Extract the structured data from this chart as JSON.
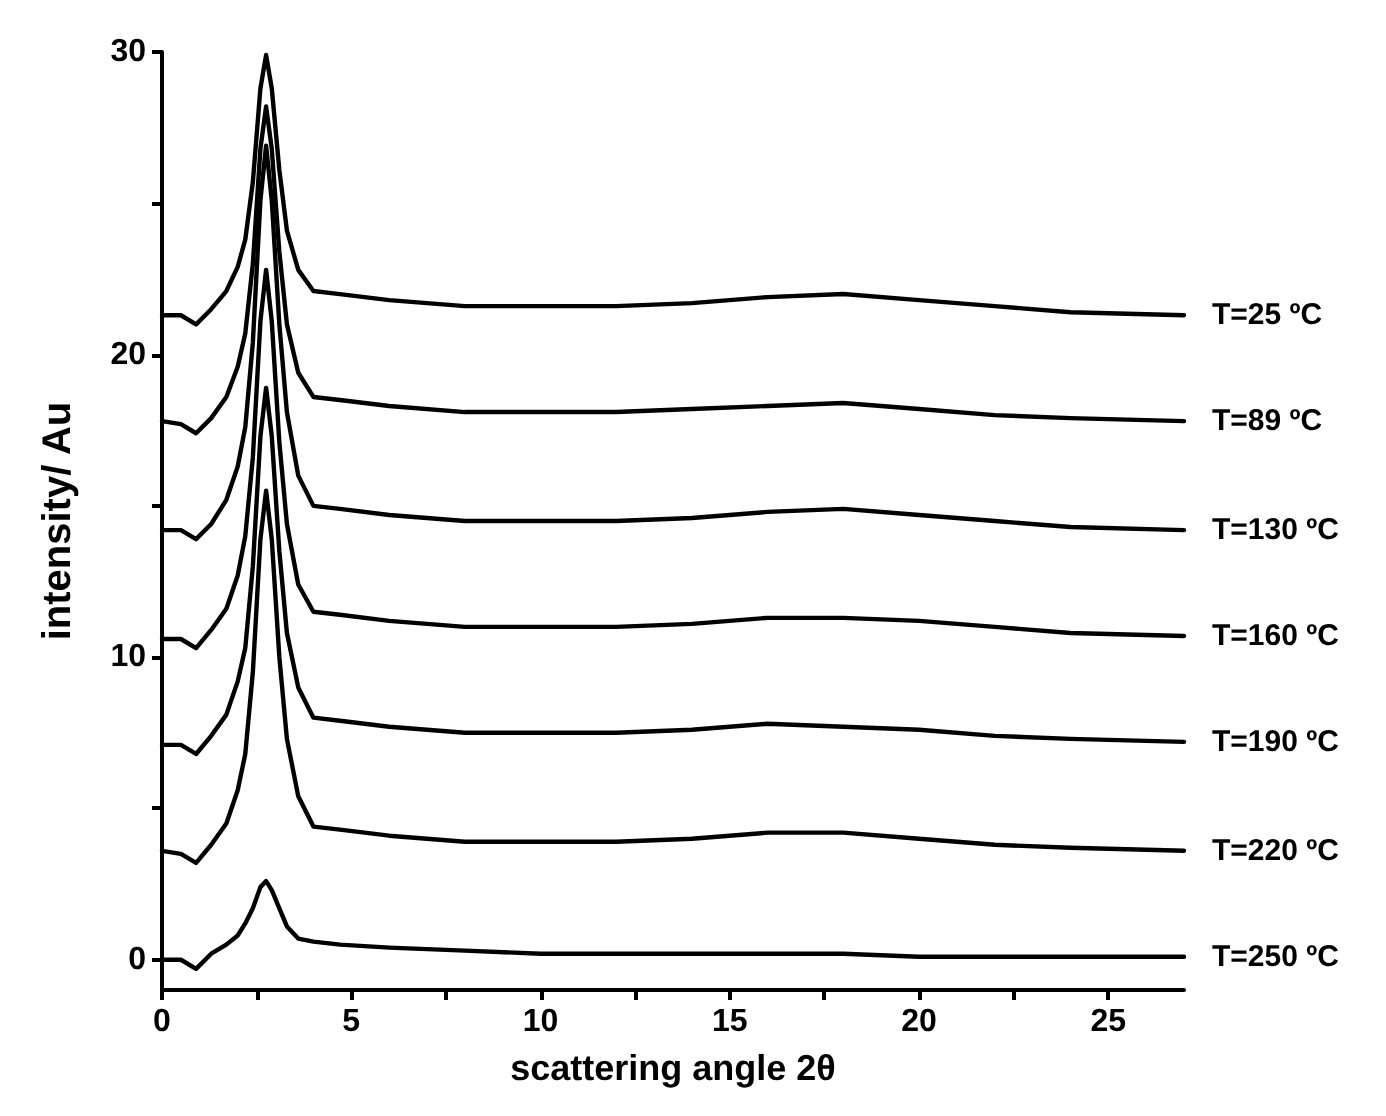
{
  "chart_data": {
    "type": "line",
    "xlabel": "scattering angle 2θ",
    "ylabel": "intensity/ Au",
    "xlim": [
      0,
      27
    ],
    "ylim": [
      -1,
      30
    ],
    "xticks": [
      0,
      {
        "value": 2.5,
        "label": null
      },
      5,
      {
        "value": 7.5,
        "label": null
      },
      10,
      {
        "value": 12.5,
        "label": null
      },
      15,
      {
        "value": 17.5,
        "label": null
      },
      20,
      {
        "value": 22.5,
        "label": null
      },
      25
    ],
    "yticks": [
      0,
      {
        "value": 5,
        "label": null
      },
      10,
      {
        "value": 15,
        "label": null
      },
      20,
      {
        "value": 25,
        "label": null
      },
      30
    ],
    "grid": false,
    "legend": false,
    "marker": "none",
    "line_style": "solid",
    "x": [
      0,
      0.5,
      0.9,
      1.3,
      1.7,
      2.0,
      2.2,
      2.4,
      2.6,
      2.75,
      2.9,
      3.1,
      3.3,
      3.6,
      4.0,
      4.7,
      6,
      8,
      10,
      12,
      14,
      16,
      18,
      20,
      22,
      24,
      27
    ],
    "series": [
      {
        "name": "T=25 ºC",
        "color": "#000000",
        "values": [
          21.3,
          21.3,
          21.0,
          21.5,
          22.1,
          22.9,
          23.8,
          25.7,
          28.8,
          29.9,
          28.8,
          26.1,
          24.1,
          22.8,
          22.1,
          22.0,
          21.8,
          21.6,
          21.6,
          21.6,
          21.7,
          21.9,
          22.0,
          21.8,
          21.6,
          21.4,
          21.3
        ]
      },
      {
        "name": "T=89 ºC",
        "color": "#000000",
        "values": [
          17.8,
          17.7,
          17.4,
          17.9,
          18.6,
          19.6,
          20.7,
          23.0,
          26.8,
          28.2,
          26.8,
          23.4,
          21.0,
          19.4,
          18.6,
          18.5,
          18.3,
          18.1,
          18.1,
          18.1,
          18.2,
          18.3,
          18.4,
          18.2,
          18.0,
          17.9,
          17.8
        ]
      },
      {
        "name": "T=130 ºC",
        "color": "#000000",
        "values": [
          14.2,
          14.2,
          13.9,
          14.4,
          15.2,
          16.3,
          17.6,
          20.4,
          25.1,
          26.9,
          25.1,
          21.0,
          18.1,
          16.0,
          15.0,
          14.9,
          14.7,
          14.5,
          14.5,
          14.5,
          14.6,
          14.8,
          14.9,
          14.7,
          14.5,
          14.3,
          14.2
        ]
      },
      {
        "name": "T=160 ºC",
        "color": "#000000",
        "values": [
          10.6,
          10.6,
          10.3,
          10.9,
          11.6,
          12.7,
          14.0,
          16.6,
          21.1,
          22.8,
          21.1,
          17.1,
          14.4,
          12.4,
          11.5,
          11.4,
          11.2,
          11.0,
          11.0,
          11.0,
          11.1,
          11.3,
          11.3,
          11.2,
          11.0,
          10.8,
          10.7
        ]
      },
      {
        "name": "T=190 ºC",
        "color": "#000000",
        "values": [
          7.1,
          7.1,
          6.8,
          7.4,
          8.1,
          9.2,
          10.3,
          13.0,
          17.3,
          18.9,
          17.3,
          13.5,
          10.8,
          9.0,
          8.0,
          7.9,
          7.7,
          7.5,
          7.5,
          7.5,
          7.6,
          7.8,
          7.7,
          7.6,
          7.4,
          7.3,
          7.2
        ]
      },
      {
        "name": "T=220 ºC",
        "color": "#000000",
        "values": [
          3.6,
          3.5,
          3.2,
          3.8,
          4.5,
          5.6,
          6.8,
          9.5,
          13.9,
          15.5,
          13.9,
          10.0,
          7.3,
          5.4,
          4.4,
          4.3,
          4.1,
          3.9,
          3.9,
          3.9,
          4.0,
          4.2,
          4.2,
          4.0,
          3.8,
          3.7,
          3.6
        ]
      },
      {
        "name": "T=250 ºC",
        "color": "#000000",
        "values": [
          0.0,
          0.0,
          -0.3,
          0.2,
          0.5,
          0.8,
          1.2,
          1.7,
          2.4,
          2.6,
          2.3,
          1.7,
          1.1,
          0.7,
          0.6,
          0.5,
          0.4,
          0.3,
          0.2,
          0.2,
          0.2,
          0.2,
          0.2,
          0.1,
          0.1,
          0.1,
          0.1
        ]
      }
    ]
  }
}
